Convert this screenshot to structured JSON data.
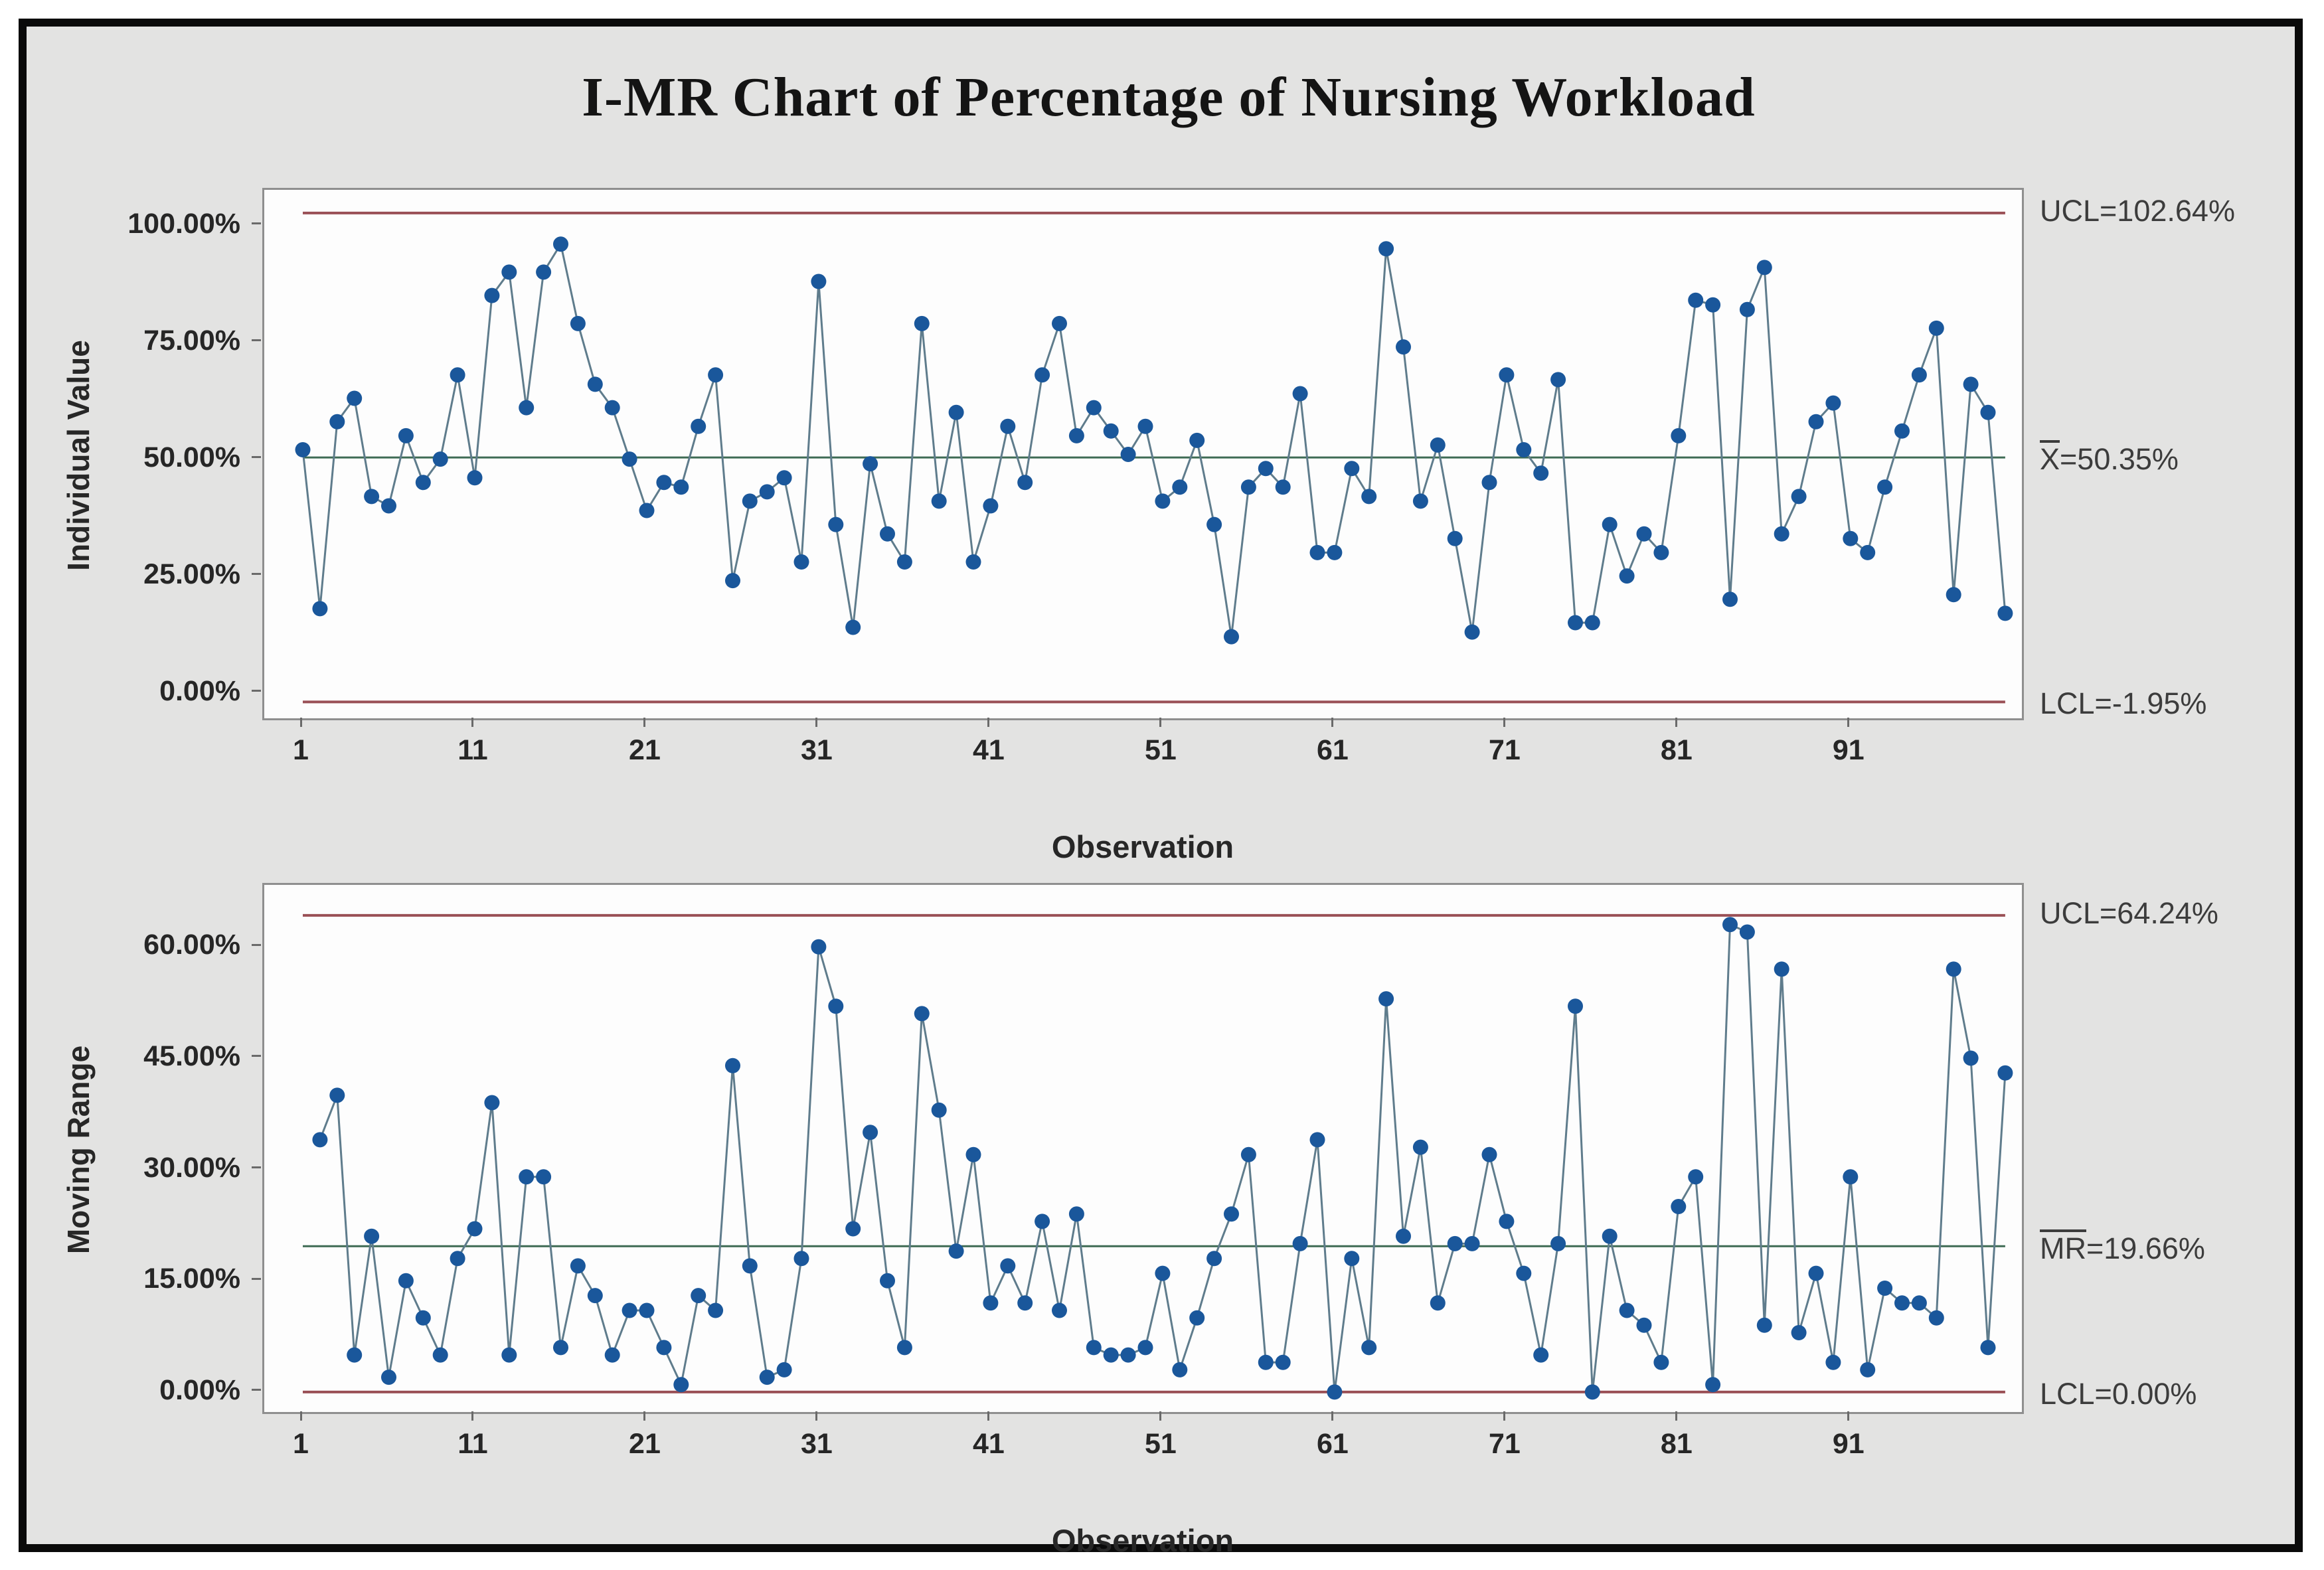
{
  "title": "I-MR Chart of Percentage of Nursing Workload",
  "palette": {
    "background": "#e3e3e2",
    "plot_background": "#fdfdfd",
    "plot_border": "#8f8f8f",
    "point_fill": "#1a579b",
    "connector_line": "#5f7c8c",
    "control_limit_line": "#9a5056",
    "center_line": "#3e6b54",
    "frame_border": "#0a0a0a",
    "text": "#262626"
  },
  "chart_data": [
    {
      "id": "individuals",
      "type": "line",
      "ylabel": "Individual Value",
      "xlabel": "Observation",
      "start_observation": 1,
      "values": [
        52,
        18,
        58,
        63,
        42,
        40,
        55,
        45,
        50,
        68,
        46,
        85,
        90,
        61,
        90,
        96,
        79,
        66,
        61,
        50,
        39,
        45,
        44,
        57,
        68,
        24,
        41,
        43,
        46,
        28,
        88,
        36,
        14,
        49,
        34,
        28,
        79,
        41,
        60,
        28,
        40,
        57,
        45,
        68,
        79,
        55,
        61,
        56,
        51,
        57,
        41,
        44,
        54,
        36,
        12,
        44,
        48,
        44,
        64,
        30,
        30,
        48,
        42,
        95,
        74,
        41,
        53,
        33,
        13,
        45,
        68,
        52,
        47,
        67,
        15,
        15,
        36,
        25,
        34,
        30,
        55,
        84,
        83,
        20,
        82,
        91,
        34,
        42,
        58,
        62,
        33,
        30,
        44,
        56,
        68,
        78,
        21,
        66,
        60,
        17
      ],
      "ylim": [
        -5.45,
        107.6
      ],
      "yticks": [
        {
          "value": 100,
          "label": "100.00%"
        },
        {
          "value": 75,
          "label": "75.00%"
        },
        {
          "value": 50,
          "label": "50.00%"
        },
        {
          "value": 25,
          "label": "25.00%"
        },
        {
          "value": 0,
          "label": "0.00%"
        }
      ],
      "xticks": [
        "1",
        "11",
        "21",
        "31",
        "41",
        "51",
        "61",
        "71",
        "81",
        "91"
      ],
      "xtick_start": 1,
      "xtick_step": 10,
      "lines": {
        "ucl": {
          "value": 102.64,
          "label": "UCL=102.64%"
        },
        "center": {
          "value": 50.35,
          "bar_text": "X",
          "label_rest": "=50.35%"
        },
        "lcl": {
          "value": -1.95,
          "label": "LCL=-1.95%"
        }
      }
    },
    {
      "id": "moving_range",
      "type": "line",
      "ylabel": "Moving Range",
      "xlabel": "Observation",
      "start_observation": 2,
      "values": [
        34,
        40,
        5,
        21,
        2,
        15,
        10,
        5,
        18,
        22,
        39,
        5,
        29,
        29,
        6,
        17,
        13,
        5,
        11,
        11,
        6,
        1,
        13,
        11,
        44,
        17,
        2,
        3,
        18,
        60,
        52,
        22,
        35,
        15,
        6,
        51,
        38,
        19,
        32,
        12,
        17,
        12,
        23,
        11,
        24,
        6,
        5,
        5,
        6,
        16,
        3,
        10,
        18,
        24,
        32,
        4,
        4,
        20,
        34,
        0,
        18,
        6,
        53,
        21,
        33,
        12,
        20,
        20,
        32,
        23,
        16,
        5,
        20,
        52,
        0,
        21,
        11,
        9,
        4,
        25,
        29,
        1,
        63,
        62,
        9,
        57,
        8,
        16,
        4,
        29,
        3,
        14,
        12,
        12,
        10,
        57,
        45,
        6,
        43
      ],
      "ylim": [
        -2.69,
        68.35
      ],
      "yticks": [
        {
          "value": 60,
          "label": "60.00%"
        },
        {
          "value": 45,
          "label": "45.00%"
        },
        {
          "value": 30,
          "label": "30.00%"
        },
        {
          "value": 15,
          "label": "15.00%"
        },
        {
          "value": 0,
          "label": "0.00%"
        }
      ],
      "xticks": [
        "1",
        "11",
        "21",
        "31",
        "41",
        "51",
        "61",
        "71",
        "81",
        "91"
      ],
      "xtick_start": 1,
      "xtick_step": 10,
      "lines": {
        "ucl": {
          "value": 64.24,
          "label": "UCL=64.24%"
        },
        "center": {
          "value": 19.66,
          "bar_text": "MR",
          "label_rest": "=19.66%"
        },
        "lcl": {
          "value": 0.0,
          "label": "LCL=0.00%"
        }
      }
    }
  ]
}
